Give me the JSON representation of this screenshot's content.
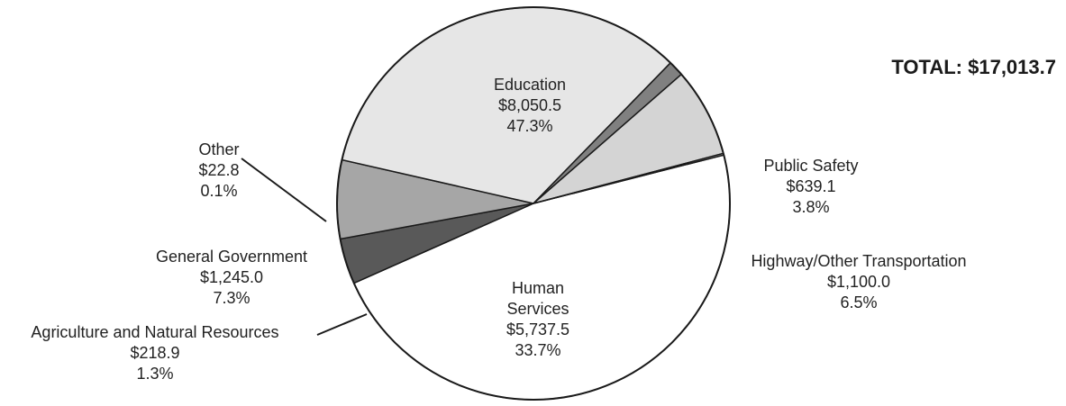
{
  "chart_data": {
    "type": "pie",
    "total_label": "TOTAL: $17,013.7",
    "slices": [
      {
        "name": "Education",
        "value": 8050.5,
        "value_label": "$8,050.5",
        "percent_label": "47.3%",
        "color": "#ffffff"
      },
      {
        "name": "Public Safety",
        "value": 639.1,
        "value_label": "$639.1",
        "percent_label": "3.8%",
        "color": "#595959"
      },
      {
        "name": "Highway/Other Transportation",
        "value": 1100.0,
        "value_label": "$1,100.0",
        "percent_label": "6.5%",
        "color": "#a6a6a6"
      },
      {
        "name": "Human Services",
        "value": 5737.5,
        "value_label": "$5,737.5",
        "percent_label": "33.7%",
        "color": "#e6e6e6",
        "display_lines": [
          "Human",
          "Services"
        ]
      },
      {
        "name": "Agriculture and Natural Resources",
        "value": 218.9,
        "value_label": "$218.9",
        "percent_label": "1.3%",
        "color": "#808080"
      },
      {
        "name": "General Government",
        "value": 1245.0,
        "value_label": "$1,245.0",
        "percent_label": "7.3%",
        "color": "#d4d4d4"
      },
      {
        "name": "Other",
        "value": 22.8,
        "value_label": "$22.8",
        "percent_label": "0.1%",
        "color": "#ffffff"
      }
    ]
  }
}
